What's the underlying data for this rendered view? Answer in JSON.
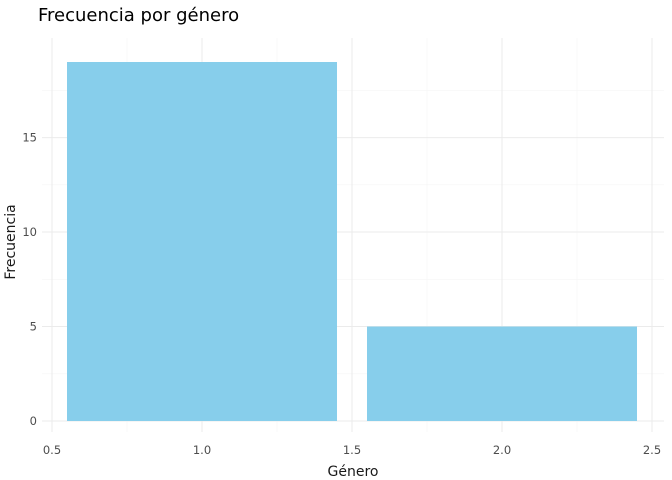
{
  "chart_data": {
    "type": "bar",
    "title": "Frecuencia por género",
    "xlabel": "Género",
    "ylabel": "Frecuencia",
    "x": [
      1.0,
      2.0
    ],
    "values": [
      19,
      5
    ],
    "bar_width": 0.9,
    "xlim": [
      0.5,
      2.5
    ],
    "ylim": [
      0,
      19
    ],
    "x_ticks": [
      0.5,
      1.0,
      1.5,
      2.0,
      2.5
    ],
    "x_tick_labels": [
      "0.5",
      "1.0",
      "1.5",
      "2.0",
      "2.5"
    ],
    "y_ticks": [
      0,
      5,
      10,
      15
    ],
    "y_tick_labels": [
      "0",
      "5",
      "10",
      "15"
    ],
    "grid": true,
    "bar_color": "#87CEEB",
    "grid_major_color": "#ebebeb",
    "grid_minor_color": "#f5f5f5"
  }
}
